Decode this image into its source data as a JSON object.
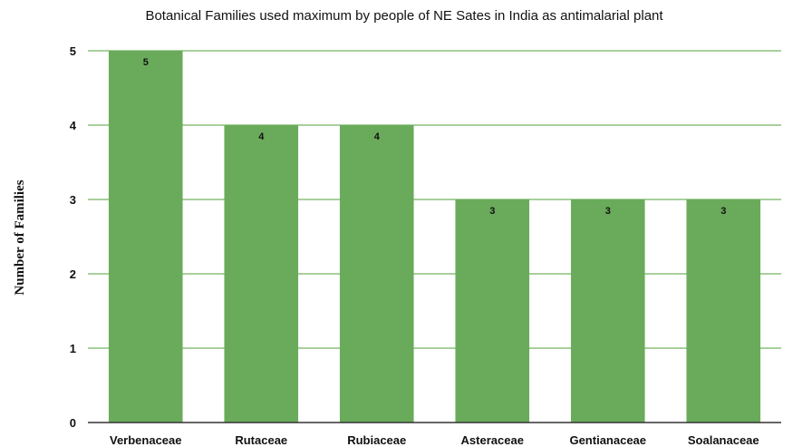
{
  "chart_data": {
    "type": "bar",
    "title": "Botanical Families used maximum by people of NE Sates in India as antimalarial plant",
    "xlabel": "",
    "ylabel": "Number of Families",
    "categories": [
      "Verbenaceae",
      "Rutaceae",
      "Rubiaceae",
      "Asteraceae",
      "Gentianaceae",
      "Soalanaceae"
    ],
    "values": [
      5,
      4,
      4,
      3,
      3,
      3
    ],
    "data_labels": [
      "5",
      "4",
      "4",
      "3",
      "3",
      "3"
    ],
    "ylim": [
      0,
      5
    ],
    "yticks": [
      "0",
      "1",
      "2",
      "3",
      "4",
      "5"
    ],
    "grid": true,
    "legend": "none",
    "bar_color": "#6aab5b",
    "grid_color": "#8cc07a"
  }
}
